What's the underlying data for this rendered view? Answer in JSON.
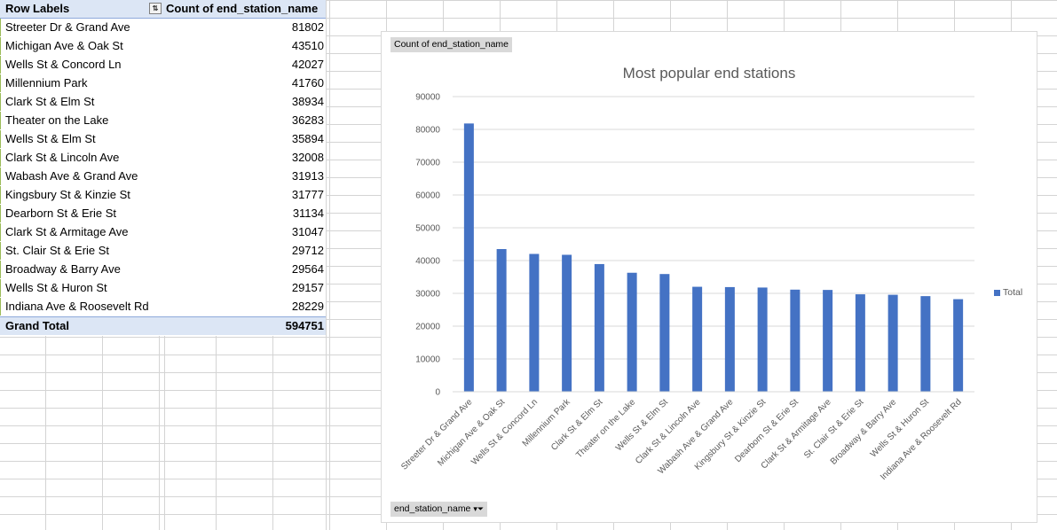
{
  "pivot": {
    "header_row_label": "Row Labels",
    "header_value_label": "Count of end_station_name",
    "rows": [
      {
        "label": "Streeter Dr & Grand Ave",
        "value": "81802"
      },
      {
        "label": "Michigan Ave & Oak St",
        "value": "43510"
      },
      {
        "label": "Wells St & Concord Ln",
        "value": "42027"
      },
      {
        "label": "Millennium Park",
        "value": "41760"
      },
      {
        "label": "Clark St & Elm St",
        "value": "38934"
      },
      {
        "label": "Theater on the Lake",
        "value": "36283"
      },
      {
        "label": "Wells St & Elm St",
        "value": "35894"
      },
      {
        "label": "Clark St & Lincoln Ave",
        "value": "32008"
      },
      {
        "label": "Wabash Ave & Grand Ave",
        "value": "31913"
      },
      {
        "label": "Kingsbury St & Kinzie St",
        "value": "31777"
      },
      {
        "label": "Dearborn St & Erie St",
        "value": "31134"
      },
      {
        "label": "Clark St & Armitage Ave",
        "value": "31047"
      },
      {
        "label": "St. Clair St & Erie St",
        "value": "29712"
      },
      {
        "label": "Broadway & Barry Ave",
        "value": "29564"
      },
      {
        "label": "Wells St & Huron St",
        "value": "29157"
      },
      {
        "label": "Indiana Ave & Roosevelt Rd",
        "value": "28229"
      }
    ],
    "grand_total_label": "Grand Total",
    "grand_total_value": "594751",
    "filter_icon": "sort-filter-icon"
  },
  "chart": {
    "value_field_button": "Count of end_station_name",
    "axis_field_button": "end_station_name",
    "axis_field_icon": "filter-dropdown-icon",
    "bar_color": "#4472c4"
  },
  "chart_data": {
    "type": "bar",
    "title": "Most popular end stations",
    "categories": [
      "Streeter Dr & Grand Ave",
      "Michigan Ave & Oak St",
      "Wells St & Concord Ln",
      "Millennium Park",
      "Clark St & Elm St",
      "Theater on the Lake",
      "Wells St & Elm St",
      "Clark St & Lincoln Ave",
      "Wabash Ave & Grand Ave",
      "Kingsbury St & Kinzie St",
      "Dearborn St & Erie St",
      "Clark St & Armitage Ave",
      "St. Clair St & Erie St",
      "Broadway & Barry Ave",
      "Wells St & Huron St",
      "Indiana Ave & Roosevelt Rd"
    ],
    "series": [
      {
        "name": "Total",
        "values": [
          81802,
          43510,
          42027,
          41760,
          38934,
          36283,
          35894,
          32008,
          31913,
          31777,
          31134,
          31047,
          29712,
          29564,
          29157,
          28229
        ]
      }
    ],
    "ylim": [
      0,
      90000
    ],
    "yticks": [
      "0",
      "10000",
      "20000",
      "30000",
      "40000",
      "50000",
      "60000",
      "70000",
      "80000",
      "90000"
    ],
    "grid": true,
    "legend": "right"
  }
}
